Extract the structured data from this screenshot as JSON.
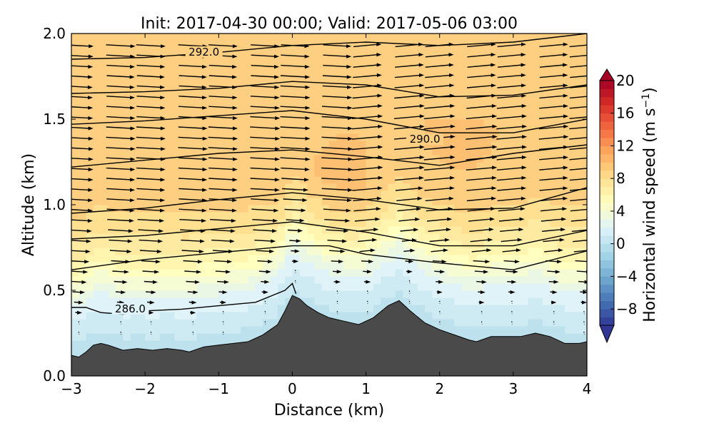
{
  "chart_data": {
    "type": "heatmap",
    "title": "Init: 2017-04-30 00:00; Valid: 2017-05-06 03:00",
    "xlabel": "Distance (km)",
    "ylabel": "Altitude (km)",
    "xlim": [
      -3,
      4
    ],
    "ylim": [
      0.0,
      2.0
    ],
    "xticks": [
      -3,
      -2,
      -1,
      0,
      1,
      2,
      3,
      4
    ],
    "yticks": [
      0.0,
      0.5,
      1.0,
      1.5,
      2.0
    ],
    "ytick_labels": [
      "0.0",
      "0.5",
      "1.0",
      "1.5",
      "2.0"
    ],
    "colorbar": {
      "label": "Horizontal wind speed (m s",
      "label_sup": "−1",
      "label_close": ")",
      "range": [
        -10,
        20
      ],
      "ticks": [
        -8,
        -4,
        0,
        4,
        8,
        12,
        16,
        20
      ],
      "tick_labels": [
        "−8",
        "−4",
        "0",
        "4",
        "8",
        "12",
        "16",
        "20"
      ],
      "extend": "both",
      "colormap": "RdYlBu_r"
    },
    "terrain": {
      "color": "#4a4a4a",
      "x": [
        -3.0,
        -2.9,
        -2.8,
        -2.7,
        -2.6,
        -2.5,
        -2.3,
        -2.1,
        -1.9,
        -1.7,
        -1.5,
        -1.4,
        -1.2,
        -1.0,
        -0.8,
        -0.6,
        -0.4,
        -0.2,
        -0.1,
        0.0,
        0.1,
        0.2,
        0.35,
        0.5,
        0.7,
        0.9,
        1.1,
        1.3,
        1.45,
        1.6,
        1.8,
        2.0,
        2.2,
        2.4,
        2.5,
        2.7,
        2.9,
        3.1,
        3.3,
        3.5,
        3.7,
        3.9,
        4.0
      ],
      "y": [
        0.12,
        0.11,
        0.14,
        0.18,
        0.19,
        0.18,
        0.15,
        0.16,
        0.15,
        0.16,
        0.15,
        0.14,
        0.17,
        0.18,
        0.19,
        0.2,
        0.24,
        0.3,
        0.38,
        0.47,
        0.45,
        0.41,
        0.37,
        0.34,
        0.32,
        0.3,
        0.34,
        0.41,
        0.44,
        0.38,
        0.31,
        0.27,
        0.24,
        0.21,
        0.2,
        0.23,
        0.23,
        0.23,
        0.25,
        0.23,
        0.19,
        0.19,
        0.2
      ]
    },
    "wind_speed_field": {
      "description_levels": [
        {
          "altitude": 0.15,
          "speed": 1
        },
        {
          "altitude": 0.3,
          "speed": 2.5
        },
        {
          "altitude": 0.45,
          "speed": 5
        },
        {
          "altitude": 0.6,
          "speed": 7
        },
        {
          "altitude": 0.8,
          "speed": 8.5
        },
        {
          "altitude": 1.2,
          "speed": 9
        },
        {
          "altitude": 1.6,
          "speed": 8.5
        },
        {
          "altitude": 2.0,
          "speed": 9.5
        }
      ]
    },
    "isentropes": [
      {
        "label": "",
        "x": [
          -3,
          -2,
          -1,
          0,
          1,
          2,
          3,
          4
        ],
        "y": [
          1.85,
          1.86,
          1.89,
          1.93,
          1.95,
          1.93,
          1.95,
          2.0
        ]
      },
      {
        "label": "292.0",
        "label_pos": [
          -1.2,
          1.88
        ],
        "x": [
          -3,
          -2,
          -1,
          0,
          1,
          2,
          3,
          4
        ],
        "y": [
          1.65,
          1.66,
          1.68,
          1.72,
          1.7,
          1.63,
          1.64,
          1.7
        ]
      },
      {
        "label": "",
        "x": [
          -3,
          -2,
          -1,
          0,
          1,
          2,
          3,
          4
        ],
        "y": [
          1.47,
          1.49,
          1.52,
          1.55,
          1.5,
          1.42,
          1.42,
          1.5
        ]
      },
      {
        "label": "290.0",
        "label_pos": [
          1.8,
          1.37
        ],
        "x": [
          -3,
          -2,
          -1,
          0,
          1,
          2,
          3,
          4
        ],
        "y": [
          1.22,
          1.26,
          1.3,
          1.32,
          1.28,
          1.23,
          1.3,
          1.35
        ]
      },
      {
        "label": "",
        "x": [
          -3,
          -2,
          -1,
          0,
          1,
          2,
          3,
          4
        ],
        "y": [
          0.95,
          0.98,
          1.03,
          1.07,
          1.03,
          0.97,
          0.98,
          1.1
        ]
      },
      {
        "label": "",
        "x": [
          -3,
          -2,
          -1,
          0,
          1,
          2,
          3,
          4
        ],
        "y": [
          0.8,
          0.82,
          0.86,
          0.9,
          0.84,
          0.76,
          0.76,
          0.85
        ]
      },
      {
        "label": "",
        "x": [
          -3,
          -2,
          -1,
          0,
          0.5,
          1,
          2,
          3,
          4
        ],
        "y": [
          0.62,
          0.68,
          0.72,
          0.76,
          0.76,
          0.71,
          0.66,
          0.62,
          0.73
        ]
      },
      {
        "label": "286.0",
        "label_pos": [
          -2.2,
          0.38
        ],
        "x": [
          -3,
          -2.8,
          -2.6,
          -2.3,
          -2.0,
          -1.5,
          -1.0,
          -0.5,
          -0.1,
          0.0,
          0.05
        ],
        "y": [
          0.4,
          0.4,
          0.37,
          0.36,
          0.38,
          0.39,
          0.41,
          0.43,
          0.5,
          0.54,
          0.48
        ]
      }
    ]
  }
}
